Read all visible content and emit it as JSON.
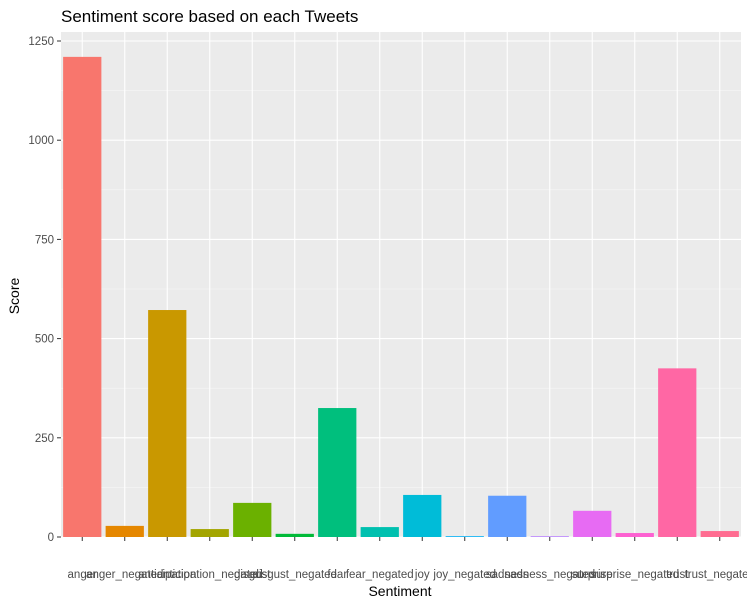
{
  "chart_data": {
    "type": "bar",
    "title": "Sentiment score based on each Tweets",
    "xlabel": "Sentiment",
    "ylabel": "Score",
    "ylim": [
      0,
      1250
    ],
    "yticks": [
      0,
      250,
      500,
      750,
      1000,
      1250
    ],
    "grid": true,
    "legend": "none",
    "categories": [
      "anger",
      "anger_negated",
      "anticipation",
      "anticipation_negated",
      "disgust",
      "disgust_negated",
      "fear",
      "fear_negated",
      "joy",
      "joy_negated",
      "sadness",
      "sadness_negated",
      "surprise",
      "surprise_negated",
      "trust",
      "trust_negated"
    ],
    "values": [
      1210,
      28,
      572,
      20,
      86,
      8,
      325,
      25,
      106,
      2,
      104,
      2,
      66,
      10,
      425,
      15
    ],
    "colors": [
      "#F8766D",
      "#E58700",
      "#C99800",
      "#A3A500",
      "#6BB100",
      "#00BA38",
      "#00BF7D",
      "#00C0AF",
      "#00BCD8",
      "#00B0F6",
      "#619CFF",
      "#B983FF",
      "#E76BF3",
      "#FD61D1",
      "#FF67A4",
      "#FF6C91"
    ]
  }
}
